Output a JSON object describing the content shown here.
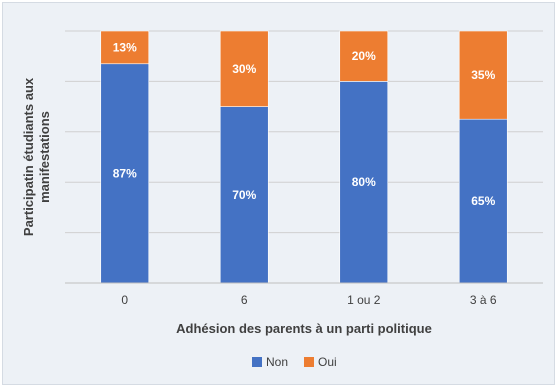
{
  "chart_data": {
    "type": "bar",
    "stacked": true,
    "normalized": true,
    "categories": [
      "0",
      "6",
      "1 ou 2",
      "3 à 6"
    ],
    "series": [
      {
        "name": "Non",
        "values": [
          87,
          70,
          80,
          65
        ],
        "labels": [
          "87%",
          "70%",
          "80%",
          "65%"
        ],
        "color": "#4472c4"
      },
      {
        "name": "Oui",
        "values": [
          13,
          30,
          20,
          35
        ],
        "labels": [
          "13%",
          "30%",
          "20%",
          "35%"
        ],
        "color": "#ed7d31"
      }
    ],
    "title": "",
    "xlabel": "Adhésion des parents à un parti politique",
    "ylabel": "Participatin étudiants aux manifestations",
    "ylim": [
      0,
      100
    ],
    "grid": true,
    "legend": "bottom"
  }
}
